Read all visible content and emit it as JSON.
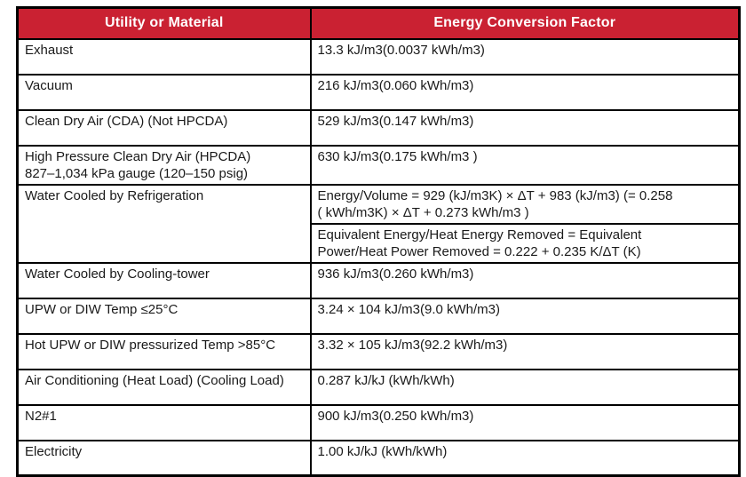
{
  "colors": {
    "header_bg": "#CA2132",
    "header_text": "#FFFFFF",
    "border_color": "#000000"
  },
  "table": {
    "headers": [
      "Utility or Material",
      "Energy Conversion Factor"
    ],
    "rows": [
      {
        "utility": "Exhaust",
        "factor": "13.3 kJ/m3(0.0037 kWh/m3)"
      },
      {
        "utility": "Vacuum",
        "factor": "216 kJ/m3(0.060 kWh/m3)"
      },
      {
        "utility": "Clean Dry Air (CDA) (Not HPCDA)",
        "factor": "529 kJ/m3(0.147 kWh/m3)"
      },
      {
        "utility_lines": [
          "High Pressure Clean Dry Air (HPCDA)",
          "827–1,034 kPa gauge (120–150 psig)"
        ],
        "factor": "630 kJ/m3(0.175 kWh/m3 )"
      },
      {
        "utility": "Water Cooled by Refrigeration",
        "factor_cells": [
          {
            "lines": [
              "Energy/Volume = 929 (kJ/m3K) × ΔT + 983 (kJ/m3) (= 0.258",
              "( kWh/m3K) × ΔT + 0.273 kWh/m3 )"
            ]
          },
          {
            "lines": [
              "Equivalent Energy/Heat Energy Removed = Equivalent",
              "Power/Heat Power Removed = 0.222 + 0.235 K/ΔT (K)"
            ]
          }
        ]
      },
      {
        "utility": "Water Cooled by Cooling-tower",
        "factor": "936 kJ/m3(0.260 kWh/m3)"
      },
      {
        "utility": "UPW or DIW Temp ≤25°C",
        "factor": "3.24 × 104 kJ/m3(9.0 kWh/m3)"
      },
      {
        "utility": "Hot UPW or DIW pressurized Temp >85°C",
        "factor": "3.32 × 105 kJ/m3(92.2 kWh/m3)"
      },
      {
        "utility": "Air Conditioning (Heat Load) (Cooling Load)",
        "factor": "0.287 kJ/kJ (kWh/kWh)"
      },
      {
        "utility": "N2#1",
        "factor": "900 kJ/m3(0.250 kWh/m3)"
      },
      {
        "utility": "Electricity",
        "factor": "1.00 kJ/kJ (kWh/kWh)"
      }
    ]
  }
}
